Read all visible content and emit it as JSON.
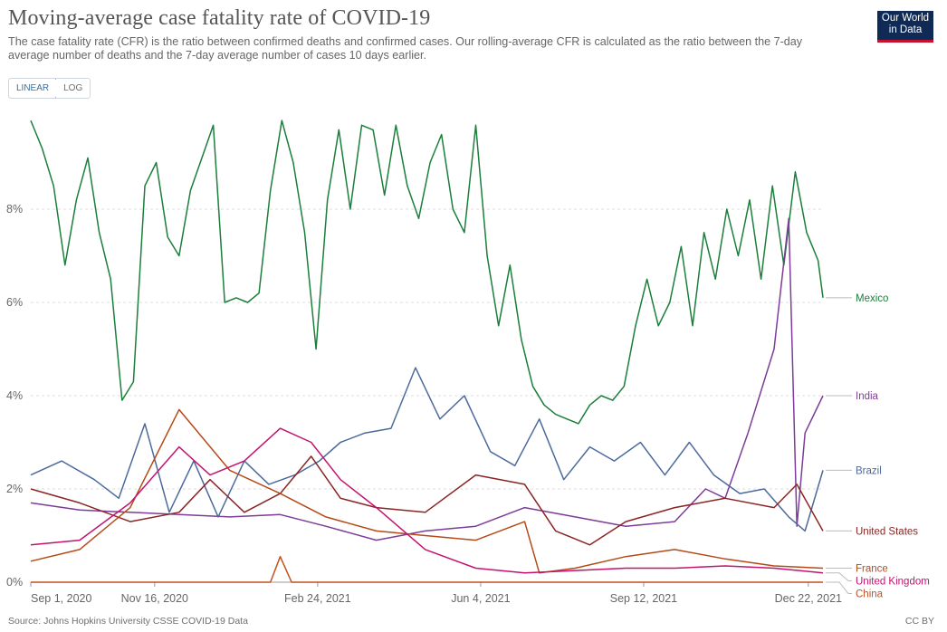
{
  "header": {
    "title": "Moving-average case fatality rate of COVID-19",
    "subtitle": "The case fatality rate (CFR) is the ratio between confirmed deaths and confirmed cases. Our rolling-average CFR is calculated as the ratio between the 7-day average number of deaths and the 7-day average number of cases 10 days earlier."
  },
  "logo": {
    "line1": "Our World",
    "line2": "in Data"
  },
  "scale_toggle": {
    "linear": "LINEAR",
    "log": "LOG",
    "selected": "LINEAR"
  },
  "footer": {
    "source": "Source: Johns Hopkins University CSSE COVID-19 Data",
    "license": "CC BY"
  },
  "chart_data": {
    "type": "line",
    "title": "Moving-average case fatality rate of COVID-19",
    "xlabel": "",
    "ylabel": "",
    "x_unit": "date",
    "xlim": [
      "2020-09-01",
      "2021-12-31"
    ],
    "ylim": [
      0,
      10
    ],
    "y_ticks": [
      0,
      2,
      4,
      6,
      8
    ],
    "y_tick_labels": [
      "0%",
      "2%",
      "4%",
      "6%",
      "8%"
    ],
    "x_ticks": [
      "2020-09-01",
      "2020-11-16",
      "2021-02-24",
      "2021-06-04",
      "2021-09-12",
      "2021-12-22"
    ],
    "x_tick_labels": [
      "Sep 1, 2020",
      "Nov 16, 2020",
      "Feb 24, 2021",
      "Jun 4, 2021",
      "Sep 12, 2021",
      "Dec 22, 2021"
    ],
    "grid": "horizontal dashed",
    "legend": "right, inline labels at line ends",
    "series": [
      {
        "name": "Mexico",
        "color": "#1b7f3b",
        "points": [
          [
            "2020-09-01",
            9.9
          ],
          [
            "2020-09-08",
            9.3
          ],
          [
            "2020-09-15",
            8.5
          ],
          [
            "2020-09-22",
            6.8
          ],
          [
            "2020-09-29",
            8.2
          ],
          [
            "2020-10-06",
            9.1
          ],
          [
            "2020-10-13",
            7.5
          ],
          [
            "2020-10-20",
            6.5
          ],
          [
            "2020-10-27",
            3.9
          ],
          [
            "2020-11-03",
            4.3
          ],
          [
            "2020-11-10",
            8.5
          ],
          [
            "2020-11-17",
            9.0
          ],
          [
            "2020-11-24",
            7.4
          ],
          [
            "2020-12-01",
            7.0
          ],
          [
            "2020-12-08",
            8.4
          ],
          [
            "2020-12-15",
            9.1
          ],
          [
            "2020-12-22",
            9.8
          ],
          [
            "2020-12-29",
            6.0
          ],
          [
            "2021-01-05",
            6.1
          ],
          [
            "2021-01-12",
            6.0
          ],
          [
            "2021-01-19",
            6.2
          ],
          [
            "2021-01-26",
            8.4
          ],
          [
            "2021-02-02",
            9.9
          ],
          [
            "2021-02-09",
            9.0
          ],
          [
            "2021-02-16",
            7.5
          ],
          [
            "2021-02-23",
            5.0
          ],
          [
            "2021-03-02",
            8.2
          ],
          [
            "2021-03-09",
            9.7
          ],
          [
            "2021-03-16",
            8.0
          ],
          [
            "2021-03-23",
            9.8
          ],
          [
            "2021-03-30",
            9.7
          ],
          [
            "2021-04-06",
            8.3
          ],
          [
            "2021-04-13",
            9.8
          ],
          [
            "2021-04-20",
            8.5
          ],
          [
            "2021-04-27",
            7.8
          ],
          [
            "2021-05-04",
            9.0
          ],
          [
            "2021-05-11",
            9.6
          ],
          [
            "2021-05-18",
            8.0
          ],
          [
            "2021-05-25",
            7.5
          ],
          [
            "2021-06-01",
            9.8
          ],
          [
            "2021-06-08",
            7.0
          ],
          [
            "2021-06-15",
            5.5
          ],
          [
            "2021-06-22",
            6.8
          ],
          [
            "2021-06-29",
            5.2
          ],
          [
            "2021-07-06",
            4.2
          ],
          [
            "2021-07-13",
            3.8
          ],
          [
            "2021-07-20",
            3.6
          ],
          [
            "2021-07-27",
            3.5
          ],
          [
            "2021-08-03",
            3.4
          ],
          [
            "2021-08-10",
            3.8
          ],
          [
            "2021-08-17",
            4.0
          ],
          [
            "2021-08-24",
            3.9
          ],
          [
            "2021-08-31",
            4.2
          ],
          [
            "2021-09-07",
            5.5
          ],
          [
            "2021-09-14",
            6.5
          ],
          [
            "2021-09-21",
            5.5
          ],
          [
            "2021-09-28",
            6.0
          ],
          [
            "2021-10-05",
            7.2
          ],
          [
            "2021-10-12",
            5.5
          ],
          [
            "2021-10-19",
            7.5
          ],
          [
            "2021-10-26",
            6.5
          ],
          [
            "2021-11-02",
            8.0
          ],
          [
            "2021-11-09",
            7.0
          ],
          [
            "2021-11-16",
            8.2
          ],
          [
            "2021-11-23",
            6.5
          ],
          [
            "2021-11-30",
            8.5
          ],
          [
            "2021-12-07",
            6.8
          ],
          [
            "2021-12-14",
            8.8
          ],
          [
            "2021-12-21",
            7.5
          ],
          [
            "2021-12-28",
            6.9
          ],
          [
            "2021-12-31",
            6.1
          ]
        ]
      },
      {
        "name": "India",
        "color": "#7d3c98",
        "points": [
          [
            "2020-09-01",
            1.7
          ],
          [
            "2020-10-01",
            1.55
          ],
          [
            "2020-11-01",
            1.5
          ],
          [
            "2020-12-01",
            1.45
          ],
          [
            "2021-01-01",
            1.4
          ],
          [
            "2021-02-01",
            1.45
          ],
          [
            "2021-03-01",
            1.2
          ],
          [
            "2021-04-01",
            0.9
          ],
          [
            "2021-05-01",
            1.1
          ],
          [
            "2021-06-01",
            1.2
          ],
          [
            "2021-07-01",
            1.6
          ],
          [
            "2021-08-01",
            1.4
          ],
          [
            "2021-09-01",
            1.2
          ],
          [
            "2021-10-01",
            1.3
          ],
          [
            "2021-10-20",
            2.0
          ],
          [
            "2021-11-01",
            1.8
          ],
          [
            "2021-11-15",
            3.2
          ],
          [
            "2021-12-01",
            5.0
          ],
          [
            "2021-12-10",
            7.8
          ],
          [
            "2021-12-15",
            1.2
          ],
          [
            "2021-12-20",
            3.2
          ],
          [
            "2021-12-31",
            4.0
          ]
        ]
      },
      {
        "name": "Brazil",
        "color": "#4c6a9c",
        "points": [
          [
            "2020-09-01",
            2.3
          ],
          [
            "2020-09-20",
            2.6
          ],
          [
            "2020-10-10",
            2.2
          ],
          [
            "2020-10-25",
            1.8
          ],
          [
            "2020-11-10",
            3.4
          ],
          [
            "2020-11-25",
            1.5
          ],
          [
            "2020-12-10",
            2.6
          ],
          [
            "2020-12-25",
            1.4
          ],
          [
            "2021-01-10",
            2.6
          ],
          [
            "2021-01-25",
            2.1
          ],
          [
            "2021-02-10",
            2.3
          ],
          [
            "2021-02-25",
            2.6
          ],
          [
            "2021-03-10",
            3.0
          ],
          [
            "2021-03-25",
            3.2
          ],
          [
            "2021-04-10",
            3.3
          ],
          [
            "2021-04-25",
            4.6
          ],
          [
            "2021-05-10",
            3.5
          ],
          [
            "2021-05-25",
            4.0
          ],
          [
            "2021-06-10",
            2.8
          ],
          [
            "2021-06-25",
            2.5
          ],
          [
            "2021-07-10",
            3.5
          ],
          [
            "2021-07-25",
            2.2
          ],
          [
            "2021-08-10",
            2.9
          ],
          [
            "2021-08-25",
            2.6
          ],
          [
            "2021-09-10",
            3.0
          ],
          [
            "2021-09-25",
            2.3
          ],
          [
            "2021-10-10",
            3.0
          ],
          [
            "2021-10-25",
            2.3
          ],
          [
            "2021-11-10",
            1.9
          ],
          [
            "2021-11-25",
            2.0
          ],
          [
            "2021-12-10",
            1.4
          ],
          [
            "2021-12-20",
            1.1
          ],
          [
            "2021-12-31",
            2.4
          ]
        ]
      },
      {
        "name": "United States",
        "color": "#8b2525",
        "points": [
          [
            "2020-09-01",
            2.0
          ],
          [
            "2020-10-01",
            1.7
          ],
          [
            "2020-11-01",
            1.3
          ],
          [
            "2020-12-01",
            1.5
          ],
          [
            "2020-12-20",
            2.2
          ],
          [
            "2021-01-10",
            1.5
          ],
          [
            "2021-02-01",
            1.9
          ],
          [
            "2021-02-20",
            2.7
          ],
          [
            "2021-03-10",
            1.8
          ],
          [
            "2021-04-01",
            1.6
          ],
          [
            "2021-05-01",
            1.5
          ],
          [
            "2021-06-01",
            2.3
          ],
          [
            "2021-07-01",
            2.1
          ],
          [
            "2021-07-20",
            1.1
          ],
          [
            "2021-08-10",
            0.8
          ],
          [
            "2021-09-01",
            1.3
          ],
          [
            "2021-10-01",
            1.6
          ],
          [
            "2021-11-01",
            1.8
          ],
          [
            "2021-12-01",
            1.6
          ],
          [
            "2021-12-15",
            2.1
          ],
          [
            "2021-12-31",
            1.1
          ]
        ]
      },
      {
        "name": "France",
        "color": "#b54a17",
        "points": [
          [
            "2020-09-01",
            0.45
          ],
          [
            "2020-10-01",
            0.7
          ],
          [
            "2020-11-01",
            1.6
          ],
          [
            "2020-12-01",
            3.7
          ],
          [
            "2021-01-01",
            2.4
          ],
          [
            "2021-02-01",
            1.9
          ],
          [
            "2021-03-01",
            1.4
          ],
          [
            "2021-04-01",
            1.1
          ],
          [
            "2021-05-01",
            1.0
          ],
          [
            "2021-06-01",
            0.9
          ],
          [
            "2021-07-01",
            1.3
          ],
          [
            "2021-07-10",
            0.2
          ],
          [
            "2021-08-01",
            0.3
          ],
          [
            "2021-09-01",
            0.55
          ],
          [
            "2021-10-01",
            0.7
          ],
          [
            "2021-11-01",
            0.5
          ],
          [
            "2021-12-01",
            0.35
          ],
          [
            "2021-12-31",
            0.3
          ]
        ]
      },
      {
        "name": "United Kingdom",
        "color": "#c3136f",
        "points": [
          [
            "2020-09-01",
            0.8
          ],
          [
            "2020-10-01",
            0.9
          ],
          [
            "2020-11-01",
            1.7
          ],
          [
            "2020-12-01",
            2.9
          ],
          [
            "2020-12-20",
            2.3
          ],
          [
            "2021-01-10",
            2.6
          ],
          [
            "2021-02-01",
            3.3
          ],
          [
            "2021-02-20",
            3.0
          ],
          [
            "2021-03-10",
            2.2
          ],
          [
            "2021-04-01",
            1.6
          ],
          [
            "2021-05-01",
            0.7
          ],
          [
            "2021-06-01",
            0.3
          ],
          [
            "2021-07-01",
            0.2
          ],
          [
            "2021-08-01",
            0.25
          ],
          [
            "2021-09-01",
            0.3
          ],
          [
            "2021-10-01",
            0.3
          ],
          [
            "2021-11-01",
            0.35
          ],
          [
            "2021-12-01",
            0.3
          ],
          [
            "2021-12-31",
            0.2
          ]
        ]
      },
      {
        "name": "China",
        "color": "#c0521f",
        "points": [
          [
            "2020-09-01",
            0.0
          ],
          [
            "2021-01-26",
            0.0
          ],
          [
            "2021-02-01",
            0.55
          ],
          [
            "2021-02-08",
            0.0
          ],
          [
            "2021-12-31",
            0.0
          ]
        ]
      }
    ],
    "end_labels": [
      "Mexico",
      "India",
      "Brazil",
      "United States",
      "France",
      "United Kingdom",
      "China"
    ]
  }
}
